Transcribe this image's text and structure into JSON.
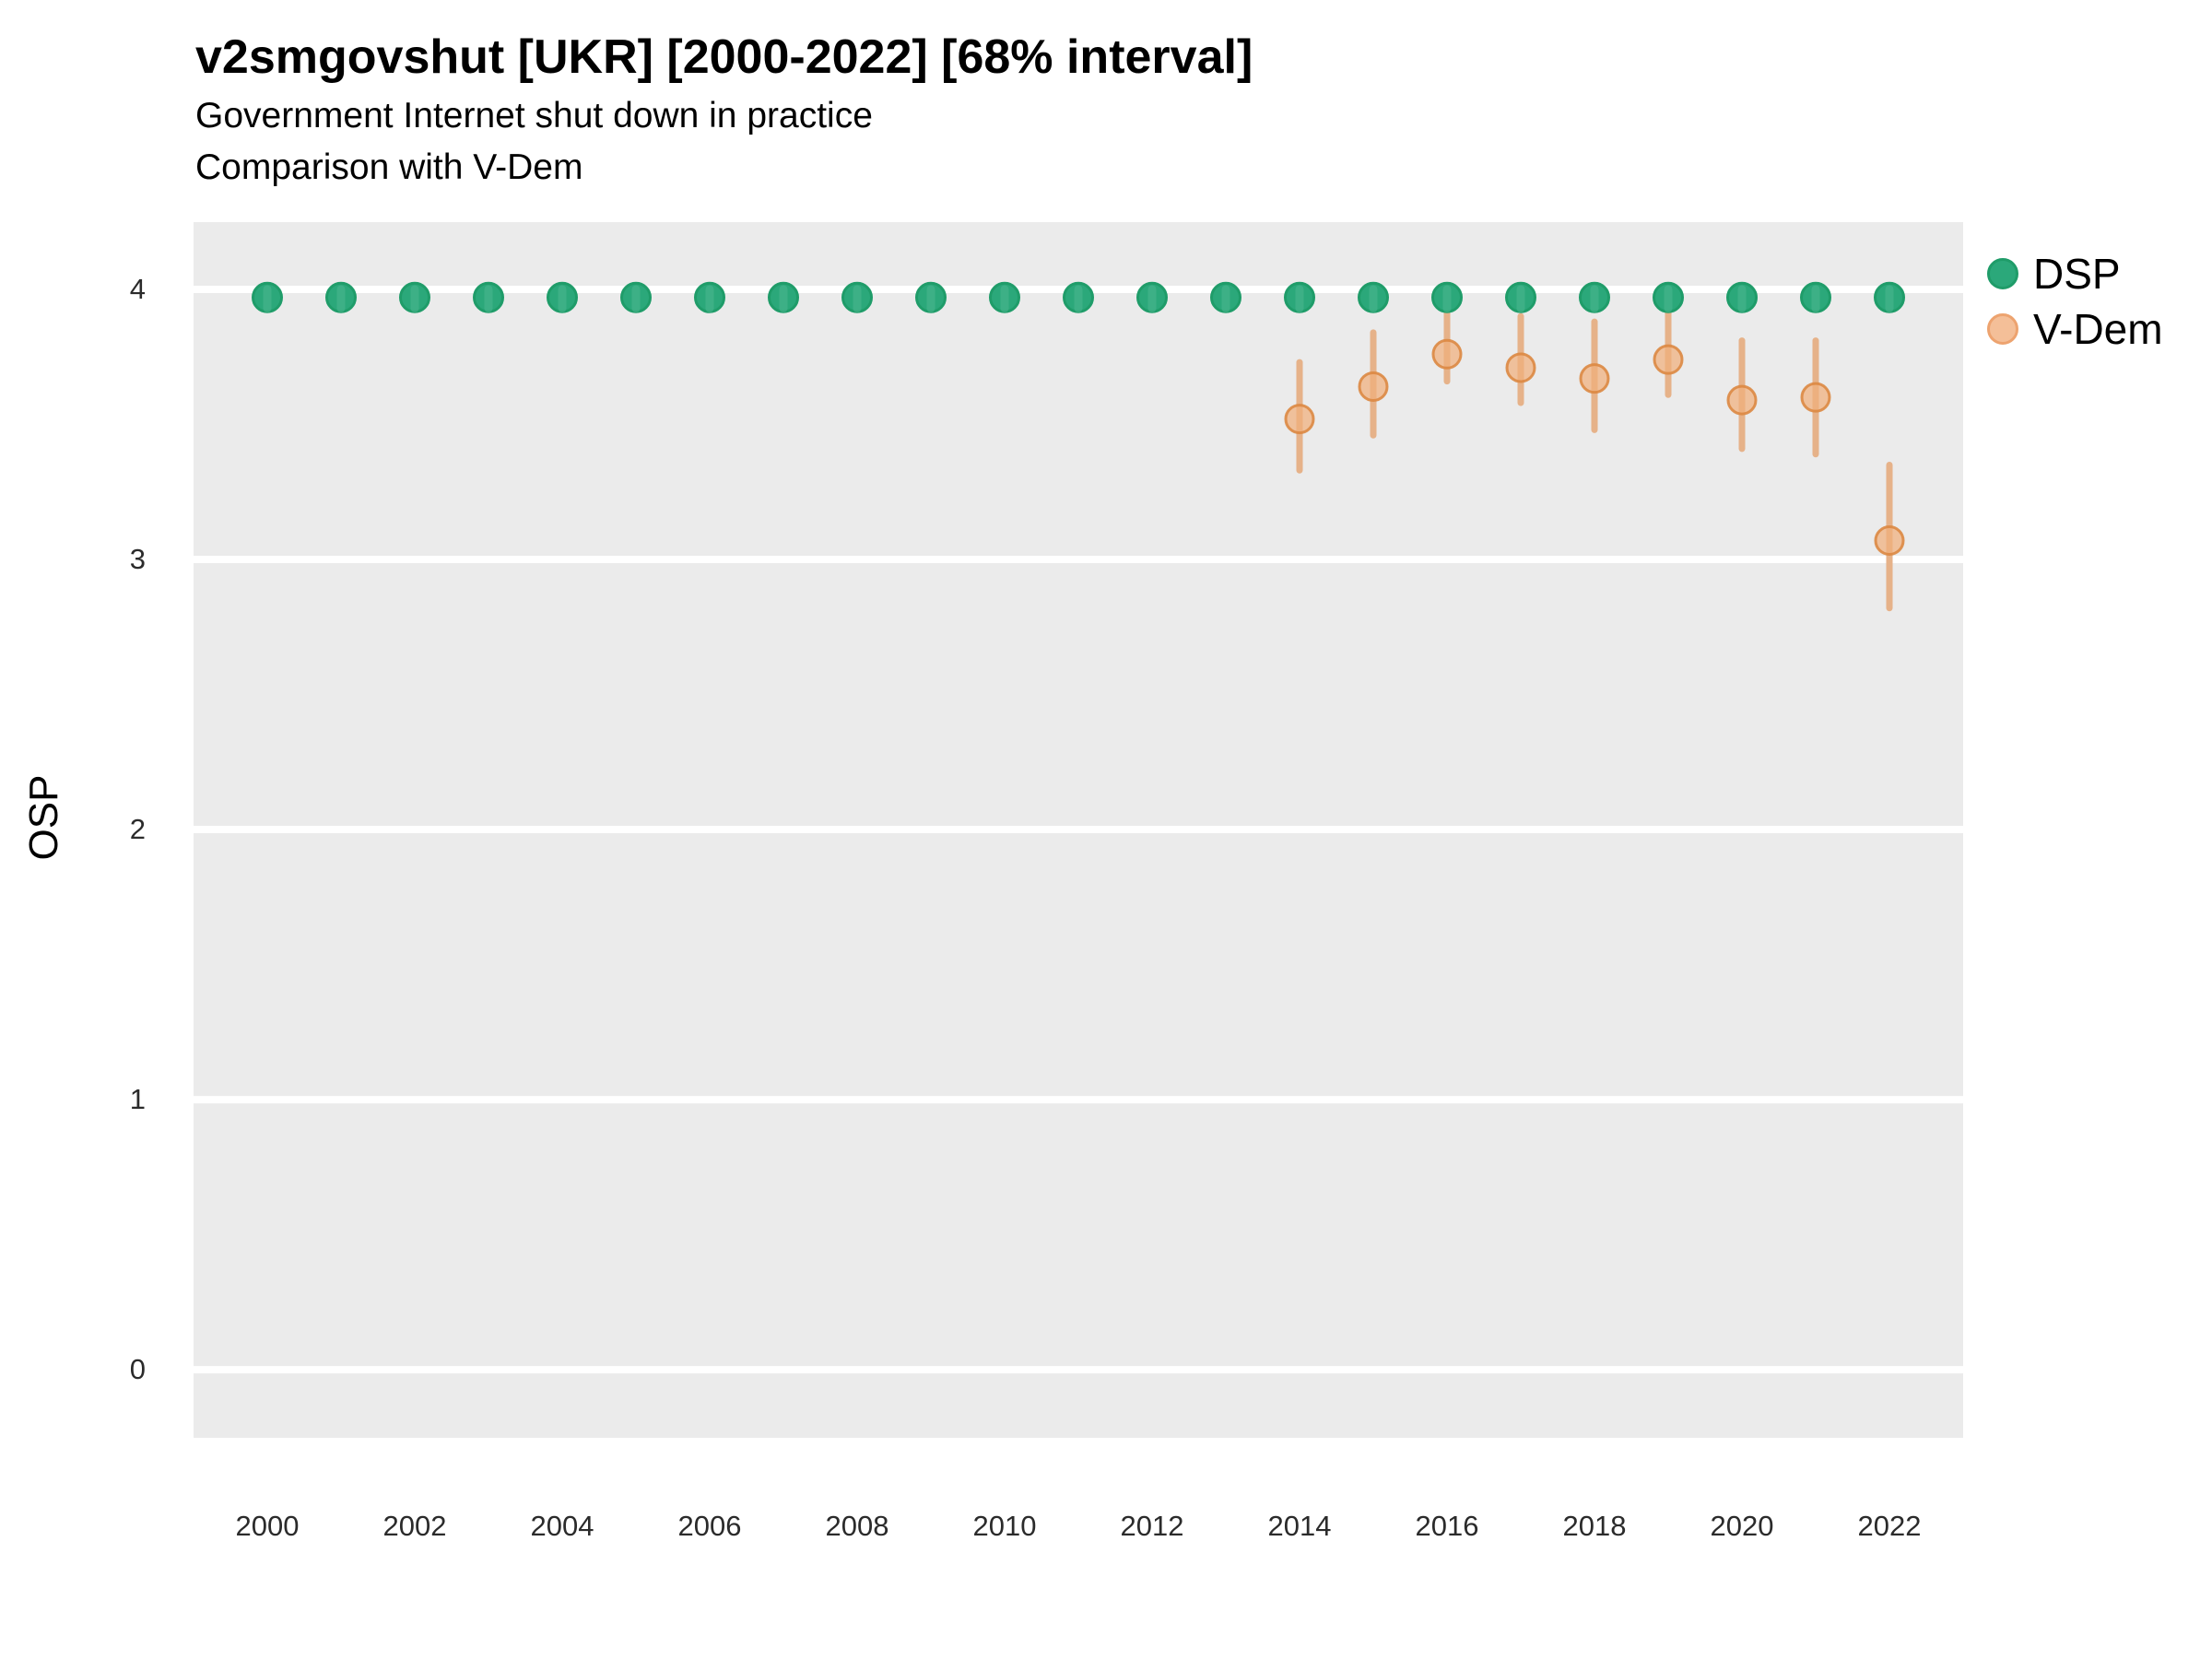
{
  "header": {
    "title": "v2smgovshut [UKR] [2000-2022] [68% interval]",
    "subtitle1": "Government Internet shut down in practice",
    "subtitle2": "Comparison with V-Dem"
  },
  "legend": {
    "items": [
      {
        "label": "DSP"
      },
      {
        "label": "V-Dem"
      }
    ]
  },
  "colors": {
    "panel_background": "#EBEBEB",
    "gridline": "#FFFFFF",
    "dsp_fill": "#2BA87A",
    "dsp_stroke": "#1F9C69",
    "dsp_stripe": "#4FB891",
    "vdem_bar": "#E6B289",
    "vdem_fill": "#F0AF7C",
    "vdem_stroke": "#DC8842",
    "legend_vdem_fill": "#F4BF98",
    "legend_vdem_stroke": "#EDA36F",
    "tick_text": "#2b2b2b"
  },
  "chart_data": {
    "type": "scatter",
    "title": "v2smgovshut [UKR] [2000-2022] [68% interval]",
    "subtitle": "Government Internet shut down in practice — Comparison with V-Dem",
    "interval_label": "68% interval",
    "xlabel": "",
    "ylabel": "OSP",
    "xlim": [
      1999,
      2023
    ],
    "ylim": [
      -0.252,
      4.249
    ],
    "x_ticks": [
      2000,
      2002,
      2004,
      2006,
      2008,
      2010,
      2012,
      2014,
      2016,
      2018,
      2020,
      2022
    ],
    "y_ticks": [
      0,
      1,
      2,
      3,
      4
    ],
    "grid": "horizontal-major-only",
    "legend_position": "right",
    "series": [
      {
        "name": "DSP",
        "x": [
          2000,
          2001,
          2002,
          2003,
          2004,
          2005,
          2006,
          2007,
          2008,
          2009,
          2010,
          2011,
          2012,
          2013,
          2014,
          2015,
          2016,
          2017,
          2018,
          2019,
          2020,
          2021,
          2022
        ],
        "y": [
          3.97,
          3.97,
          3.97,
          3.97,
          3.97,
          3.97,
          3.97,
          3.97,
          3.97,
          3.97,
          3.97,
          3.97,
          3.97,
          3.97,
          3.97,
          3.97,
          3.97,
          3.97,
          3.97,
          3.97,
          3.97,
          3.97,
          3.97
        ],
        "y_low": [
          3.93,
          3.93,
          3.93,
          3.93,
          3.93,
          3.93,
          3.93,
          3.93,
          3.93,
          3.93,
          3.93,
          3.93,
          3.93,
          3.93,
          3.93,
          3.93,
          3.93,
          3.93,
          3.93,
          3.93,
          3.93,
          3.93,
          3.93
        ],
        "y_high": [
          4.0,
          4.0,
          4.0,
          4.0,
          4.0,
          4.0,
          4.0,
          4.0,
          4.0,
          4.0,
          4.0,
          4.0,
          4.0,
          4.0,
          4.0,
          4.0,
          4.0,
          4.0,
          4.0,
          4.0,
          4.0,
          4.0,
          4.0
        ]
      },
      {
        "name": "V-Dem",
        "x": [
          2014,
          2015,
          2016,
          2017,
          2018,
          2019,
          2020,
          2021,
          2022
        ],
        "y": [
          3.52,
          3.64,
          3.76,
          3.71,
          3.67,
          3.74,
          3.59,
          3.6,
          3.07
        ],
        "y_low": [
          3.33,
          3.46,
          3.66,
          3.58,
          3.48,
          3.61,
          3.41,
          3.39,
          2.82
        ],
        "y_high": [
          3.73,
          3.84,
          3.91,
          3.9,
          3.88,
          3.92,
          3.81,
          3.81,
          3.35
        ]
      }
    ]
  }
}
